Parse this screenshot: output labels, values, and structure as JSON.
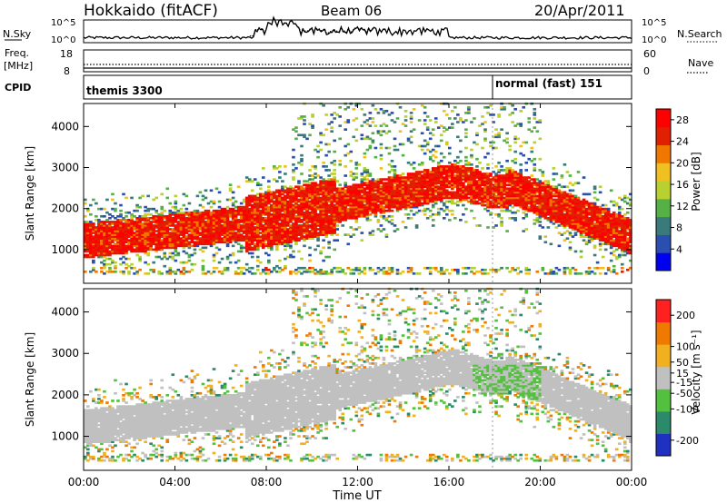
{
  "header": {
    "station": "Hokkaido (fitACF)",
    "beam": "Beam 06",
    "date": "20/Apr/2011"
  },
  "noise_panel": {
    "left_label": "N.Sky",
    "right_label": "N.Search",
    "left_ticks": [
      "10^5",
      "10^0"
    ],
    "right_ticks": [
      "10^5",
      "10^0"
    ]
  },
  "freq_panel": {
    "left_label_top": "Freq.",
    "left_label_bottom": "[MHz]",
    "right_label": "Nave",
    "left_ticks": [
      "18",
      "8"
    ],
    "right_ticks": [
      "60",
      "0"
    ]
  },
  "cpid_panel": {
    "label": "CPID",
    "segments": [
      {
        "text": "themis 3300",
        "start_hour": 0
      },
      {
        "text": "normal (fast) 151",
        "start_hour": 18.0
      }
    ]
  },
  "x_axis": {
    "label": "Time UT",
    "ticks": [
      "00:00",
      "04:00",
      "08:00",
      "12:00",
      "16:00",
      "20:00",
      "00:00"
    ]
  },
  "chart_data": [
    {
      "type": "heatmap",
      "name": "power",
      "xlabel": "Time UT",
      "ylabel": "Slant Range [km]",
      "xlim": [
        0,
        24
      ],
      "ylim": [
        180,
        4560
      ],
      "y_ticks": [
        "1000",
        "2000",
        "3000",
        "4000"
      ],
      "colorbar": {
        "label": "Power [dB]",
        "ticks": [
          "4",
          "8",
          "12",
          "16",
          "20",
          "24",
          "28"
        ],
        "range": [
          0,
          30
        ],
        "colors": [
          "#0000f0",
          "#2a4fb0",
          "#3a7a7a",
          "#55b045",
          "#b8d030",
          "#f0c020",
          "#f07800",
          "#e02000",
          "#ff0000"
        ]
      }
    },
    {
      "type": "heatmap",
      "name": "velocity",
      "xlabel": "Time UT",
      "ylabel": "Slant Range [km]",
      "xlim": [
        0,
        24
      ],
      "ylim": [
        180,
        4560
      ],
      "y_ticks": [
        "1000",
        "2000",
        "3000",
        "4000"
      ],
      "colorbar": {
        "label": "Velocity [m s⁻¹]",
        "ticks": [
          "200",
          "100",
          "50",
          "15",
          "-15",
          "-50",
          "-100",
          "-200"
        ],
        "range": [
          -250,
          250
        ],
        "colors": [
          "#2030c0",
          "#2b8a6a",
          "#54c040",
          "#c0c0c0",
          "#f0b020",
          "#f07a00",
          "#ff2020"
        ]
      }
    }
  ]
}
